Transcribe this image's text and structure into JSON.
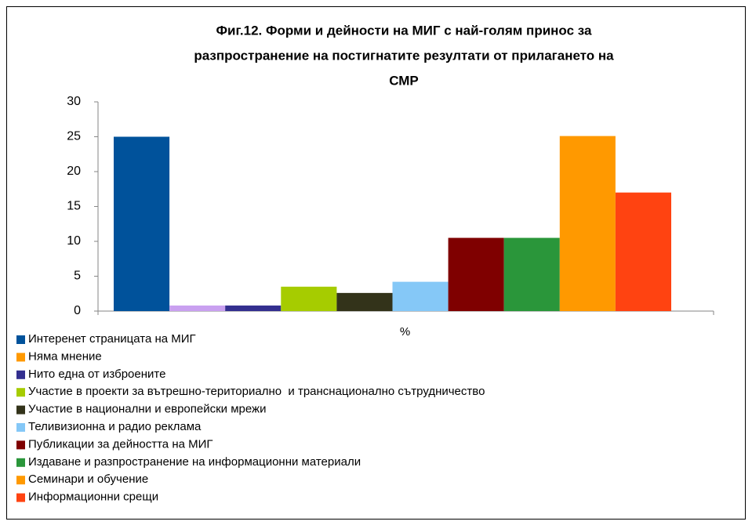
{
  "chart_data": {
    "type": "bar",
    "title": [
      "Фиг.12. Форми и дейности на МИГ с  най-голям принос за",
      "разпространение на постигнатите резултати от прилагането на",
      "СМР"
    ],
    "categories": [
      "%"
    ],
    "series": [
      {
        "name": "Интеренет страницата на МИГ",
        "color": "#00529b",
        "values": [
          25
        ]
      },
      {
        "name": "Няма мнение",
        "color": "#c9a0f0",
        "legend_color": "#ff9900",
        "values": [
          0.8
        ]
      },
      {
        "name": "Нито една от изброените",
        "color": "#332f8f",
        "values": [
          0.8
        ]
      },
      {
        "name": "Участие в проекти за вътрешно-териториално  и транснационално сътрудничество",
        "color": "#a6cc00",
        "values": [
          3.5
        ]
      },
      {
        "name": "Участие в национални и европейски мрежи",
        "color": "#33331a",
        "values": [
          2.6
        ]
      },
      {
        "name": "Теливизионна и радио реклама",
        "color": "#85c8f7",
        "values": [
          4.2
        ]
      },
      {
        "name": "Публикации за дейността на МИГ",
        "color": "#7f0000",
        "values": [
          10.5
        ]
      },
      {
        "name": "Издаване и разпространение на информационни материали",
        "color": "#2a963a",
        "values": [
          10.5
        ]
      },
      {
        "name": "Семинари и обучение",
        "color": "#ff9900",
        "values": [
          25.1
        ]
      },
      {
        "name": "Информационни срещи",
        "color": "#ff4311",
        "values": [
          17
        ]
      }
    ],
    "ylim": [
      0,
      30
    ],
    "yticks": [
      0,
      5,
      10,
      15,
      20,
      25,
      30
    ],
    "grid": false
  }
}
